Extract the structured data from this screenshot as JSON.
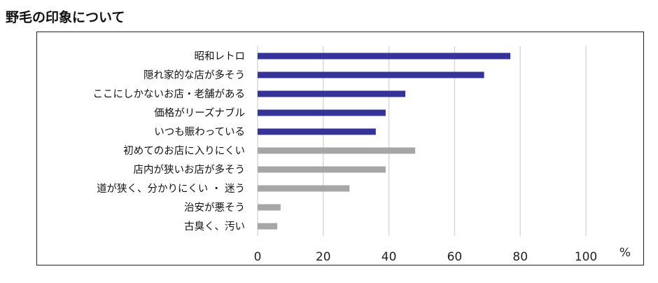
{
  "title": "野毛の印象について",
  "chart_data": {
    "type": "bar",
    "orientation": "horizontal",
    "categories": [
      "昭和レトロ",
      "隠れ家的な店が多そう",
      "ここにしかないお店・老舗がある",
      "価格がリーズナブル",
      "いつも賑わっている",
      "初めてのお店に入りにくい",
      "店内が狭いお店が多そう",
      "道が狭く、分かりにくい ・ 迷う",
      "治安が悪そう",
      "古臭く、汚い"
    ],
    "values": [
      77,
      69,
      45,
      39,
      36,
      48,
      39,
      28,
      7,
      6
    ],
    "bar_colors": [
      "#333399",
      "#333399",
      "#333399",
      "#333399",
      "#333399",
      "#a6a6a6",
      "#a6a6a6",
      "#a6a6a6",
      "#a6a6a6",
      "#a6a6a6"
    ],
    "xlim": [
      0,
      100
    ],
    "xticks": [
      "0",
      "20",
      "40",
      "60",
      "80",
      "100"
    ],
    "xunit": "%",
    "grid": true,
    "legend": "none"
  }
}
